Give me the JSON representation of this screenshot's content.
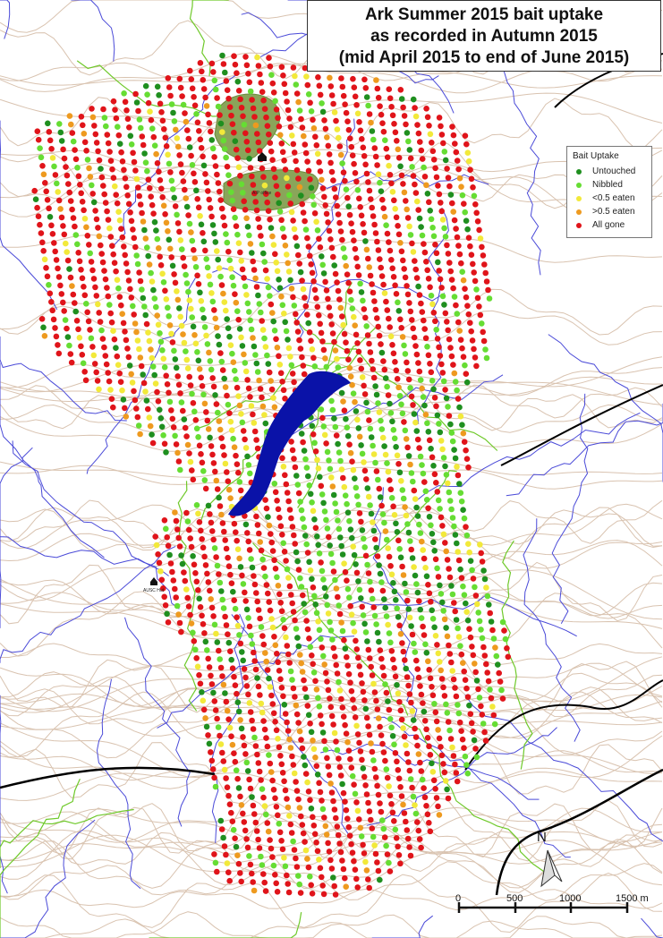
{
  "title": {
    "line1": "Ark Summer 2015 bait uptake",
    "line2": "as recorded in Autumn 2015",
    "line3": "(mid April 2015 to end of June 2015)"
  },
  "legend": {
    "title": "Bait Uptake",
    "items": [
      {
        "label": "Untouched",
        "color": "#1f8f1f"
      },
      {
        "label": "Nibbled",
        "color": "#66dd33"
      },
      {
        "label": "<0.5 eaten",
        "color": "#f2e93a"
      },
      {
        "label": ">0.5 eaten",
        "color": "#ee9a1f"
      },
      {
        "label": "All gone",
        "color": "#e0141a"
      }
    ]
  },
  "places": {
    "office": "AIP office",
    "hut": "AUSC Hut"
  },
  "north_arrow": "N",
  "scale_bar": {
    "labels": [
      "0",
      "500",
      "1000",
      "1500 m"
    ]
  },
  "colors": {
    "lake": "#0a12a8",
    "park": "#8aa55a",
    "contour": "#d9c3b0",
    "stream": "#4a4ad8",
    "track": "#6fc92a",
    "boundary": "#000000"
  }
}
